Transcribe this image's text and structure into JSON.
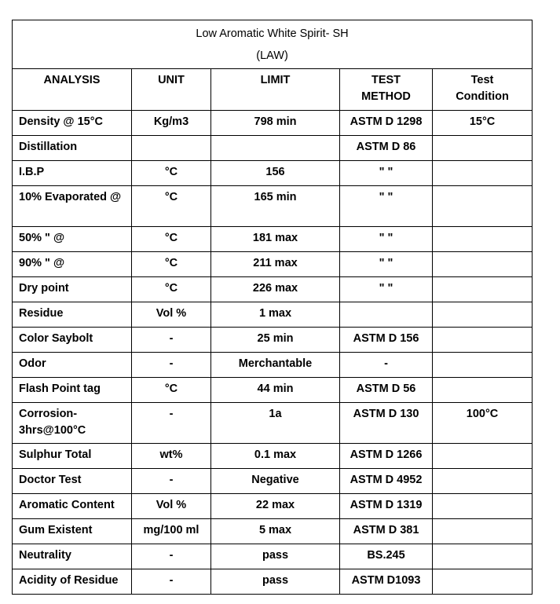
{
  "title": {
    "line1": "Low Aromatic White Spirit- SH",
    "line2": "(LAW)"
  },
  "headers": {
    "analysis": "ANALYSIS",
    "unit": "UNIT",
    "limit": "LIMIT",
    "test_method_1": "TEST",
    "test_method_2": "METHOD",
    "test_condition_1": "Test",
    "test_condition_2": "Condition"
  },
  "rows": [
    {
      "analysis": "Density @ 15°C",
      "unit": "Kg/m3",
      "limit": "798 min",
      "method": "ASTM D 1298",
      "condition": "15°C"
    },
    {
      "analysis": "Distillation",
      "unit": "",
      "limit": "",
      "method": "ASTM D 86",
      "condition": ""
    },
    {
      "analysis": "I.B.P",
      "unit": "°C",
      "limit": "156",
      "method": "\" \"",
      "condition": ""
    },
    {
      "analysis": "10%    Evaporated @",
      "unit": "°C",
      "limit": "165 min",
      "method": "\" \"",
      "condition": ""
    },
    {
      "analysis": "50% \" @",
      "unit": "°C",
      "limit": "181 max",
      "method": "\" \"",
      "condition": ""
    },
    {
      "analysis": "90% \" @",
      "unit": "°C",
      "limit": "211 max",
      "method": "\" \"",
      "condition": ""
    },
    {
      "analysis": "Dry point",
      "unit": "°C",
      "limit": "226 max",
      "method": "\" \"",
      "condition": ""
    },
    {
      "analysis": "Residue",
      "unit": "Vol %",
      "limit": "1 max",
      "method": "",
      "condition": ""
    },
    {
      "analysis": "Color Saybolt",
      "unit": "-",
      "limit": "25 min",
      "method": "ASTM D 156",
      "condition": ""
    },
    {
      "analysis": "Odor",
      "unit": "-",
      "limit": "Merchantable",
      "method": "-",
      "condition": ""
    },
    {
      "analysis": "Flash Point tag",
      "unit": "°C",
      "limit": "44 min",
      "method": "ASTM D 56",
      "condition": ""
    },
    {
      "analysis": "Corrosion- 3hrs@100°C",
      "unit": "-",
      "limit": "1a",
      "method": "ASTM D 130",
      "condition": "100°C"
    },
    {
      "analysis": "Sulphur Total",
      "unit": "wt%",
      "limit": "0.1 max",
      "method": "ASTM D 1266",
      "condition": ""
    },
    {
      "analysis": "Doctor Test",
      "unit": "-",
      "limit": "Negative",
      "method": "ASTM D 4952",
      "condition": ""
    },
    {
      "analysis": "Aromatic Content",
      "unit": "Vol %",
      "limit": "22 max",
      "method": "ASTM D 1319",
      "condition": ""
    },
    {
      "analysis": "Gum Existent",
      "unit": "mg/100 ml",
      "limit": "5 max",
      "method": "ASTM D 381",
      "condition": ""
    },
    {
      "analysis": "Neutrality",
      "unit": "-",
      "limit": "pass",
      "method": "BS.245",
      "condition": ""
    },
    {
      "analysis": "Acidity of Residue",
      "unit": "-",
      "limit": "pass",
      "method": "ASTM D1093",
      "condition": ""
    }
  ]
}
